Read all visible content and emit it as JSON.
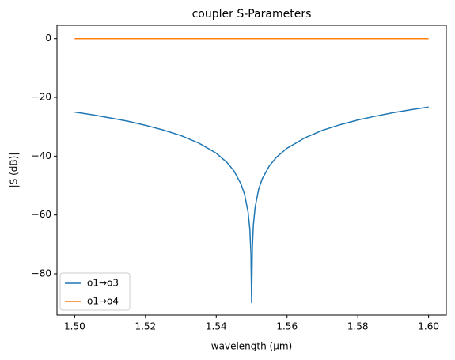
{
  "chart_data": {
    "type": "line",
    "title": "coupler S-Parameters",
    "x_label": "wavelength (µm)",
    "y_label": "|S (dB)|",
    "x": [
      1.5,
      1.505,
      1.51,
      1.515,
      1.52,
      1.525,
      1.53,
      1.535,
      1.54,
      1.543,
      1.545,
      1.547,
      1.548,
      1.549,
      1.5495,
      1.5498,
      1.55,
      1.5502,
      1.5505,
      1.551,
      1.552,
      1.553,
      1.555,
      1.557,
      1.56,
      1.565,
      1.57,
      1.575,
      1.58,
      1.585,
      1.59,
      1.595,
      1.6
    ],
    "series": [
      {
        "name": "o1→o3",
        "color": "#1f77b4",
        "values": [
          -25.0,
          -25.9,
          -27.0,
          -28.1,
          -29.5,
          -31.1,
          -33.0,
          -35.5,
          -39.0,
          -42.1,
          -45.0,
          -49.5,
          -53.0,
          -59.0,
          -65.0,
          -73.0,
          -90,
          -71.2,
          -63.3,
          -57.3,
          -51.2,
          -47.7,
          -43.3,
          -40.4,
          -37.3,
          -33.8,
          -31.2,
          -29.3,
          -27.7,
          -26.4,
          -25.2,
          -24.2,
          -23.3
        ]
      },
      {
        "name": "o1→o4",
        "color": "#ff7f0e",
        "values": [
          0,
          0,
          0,
          0,
          0,
          0,
          0,
          0,
          0,
          0,
          0,
          0,
          0,
          0,
          0,
          0,
          0,
          0,
          0,
          0,
          0,
          0,
          0,
          0,
          0,
          0,
          0,
          0,
          0,
          0,
          0,
          0,
          0
        ]
      }
    ],
    "xlim": [
      1.495,
      1.605
    ],
    "ylim": [
      -94,
      4.5
    ],
    "xticks": [
      {
        "value": 1.5,
        "label": "1.50"
      },
      1.52,
      1.54,
      1.56,
      1.58,
      {
        "value": 1.6,
        "label": "1.60"
      }
    ],
    "yticks": [
      {
        "value": -80,
        "label": "−80"
      },
      {
        "value": -60,
        "label": "−60"
      },
      {
        "value": -40,
        "label": "−40"
      },
      {
        "value": -20,
        "label": "−20"
      },
      0
    ],
    "legend": "lower left",
    "grid": false
  }
}
